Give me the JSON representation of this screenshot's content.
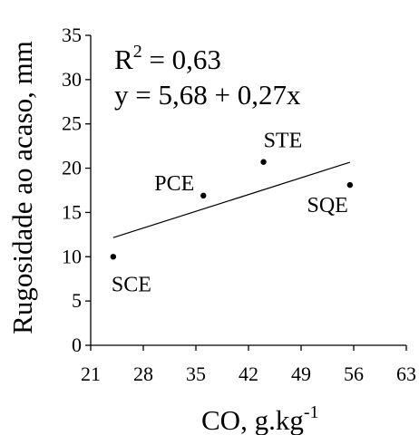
{
  "chart_data": {
    "type": "scatter",
    "title": "",
    "xlabel": {
      "base": "CO, g.kg",
      "sup": "-1"
    },
    "ylabel": "Rugosidade ao acaso, mm",
    "xlim": [
      21,
      63
    ],
    "ylim": [
      0,
      35
    ],
    "x_ticks": [
      "21",
      "28",
      "35",
      "42",
      "49",
      "56",
      "63"
    ],
    "y_ticks": [
      "0",
      "5",
      "10",
      "15",
      "20",
      "25",
      "30",
      "35"
    ],
    "grid": false,
    "points": [
      {
        "label": "SCE",
        "x": 24.0,
        "y": 10.0
      },
      {
        "label": "PCE",
        "x": 36.0,
        "y": 16.9
      },
      {
        "label": "STE",
        "x": 44.0,
        "y": 20.7
      },
      {
        "label": "SQE",
        "x": 55.5,
        "y": 18.1
      }
    ],
    "trendline": {
      "intercept": 5.68,
      "slope": 0.27,
      "x_range": [
        24.0,
        55.5
      ]
    },
    "annotations": {
      "r2": {
        "base": "R",
        "sup": "2",
        "rest": " = 0,63"
      },
      "equation": "y = 5,68 + 0,27x"
    },
    "colors": {
      "marks": "#000000",
      "background": "#ffffff"
    }
  }
}
